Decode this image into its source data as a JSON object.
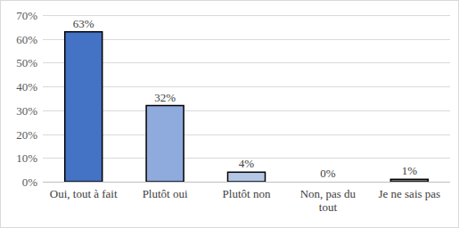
{
  "chart_data": {
    "type": "bar",
    "categories": [
      "Oui, tout à fait",
      "Plutôt oui",
      "Plutôt non",
      "Non, pas du tout",
      "Je ne sais pas"
    ],
    "values": [
      63,
      32,
      4,
      0,
      1
    ],
    "value_labels": [
      "63%",
      "32%",
      "4%",
      "0%",
      "1%"
    ],
    "colors": [
      "#4472c4",
      "#8faadc",
      "#b4c7e7",
      "#d9e2f3",
      "#7f7f7f"
    ],
    "ylim": [
      0,
      70
    ],
    "yticks": [
      {
        "value": 0,
        "label": "0%"
      },
      {
        "value": 10,
        "label": "10%"
      },
      {
        "value": 20,
        "label": "20%"
      },
      {
        "value": 30,
        "label": "30%"
      },
      {
        "value": 40,
        "label": "40%"
      },
      {
        "value": 50,
        "label": "50%"
      },
      {
        "value": 60,
        "label": "60%"
      },
      {
        "value": 70,
        "label": "70%"
      }
    ],
    "grid": true,
    "data_labels": true
  }
}
